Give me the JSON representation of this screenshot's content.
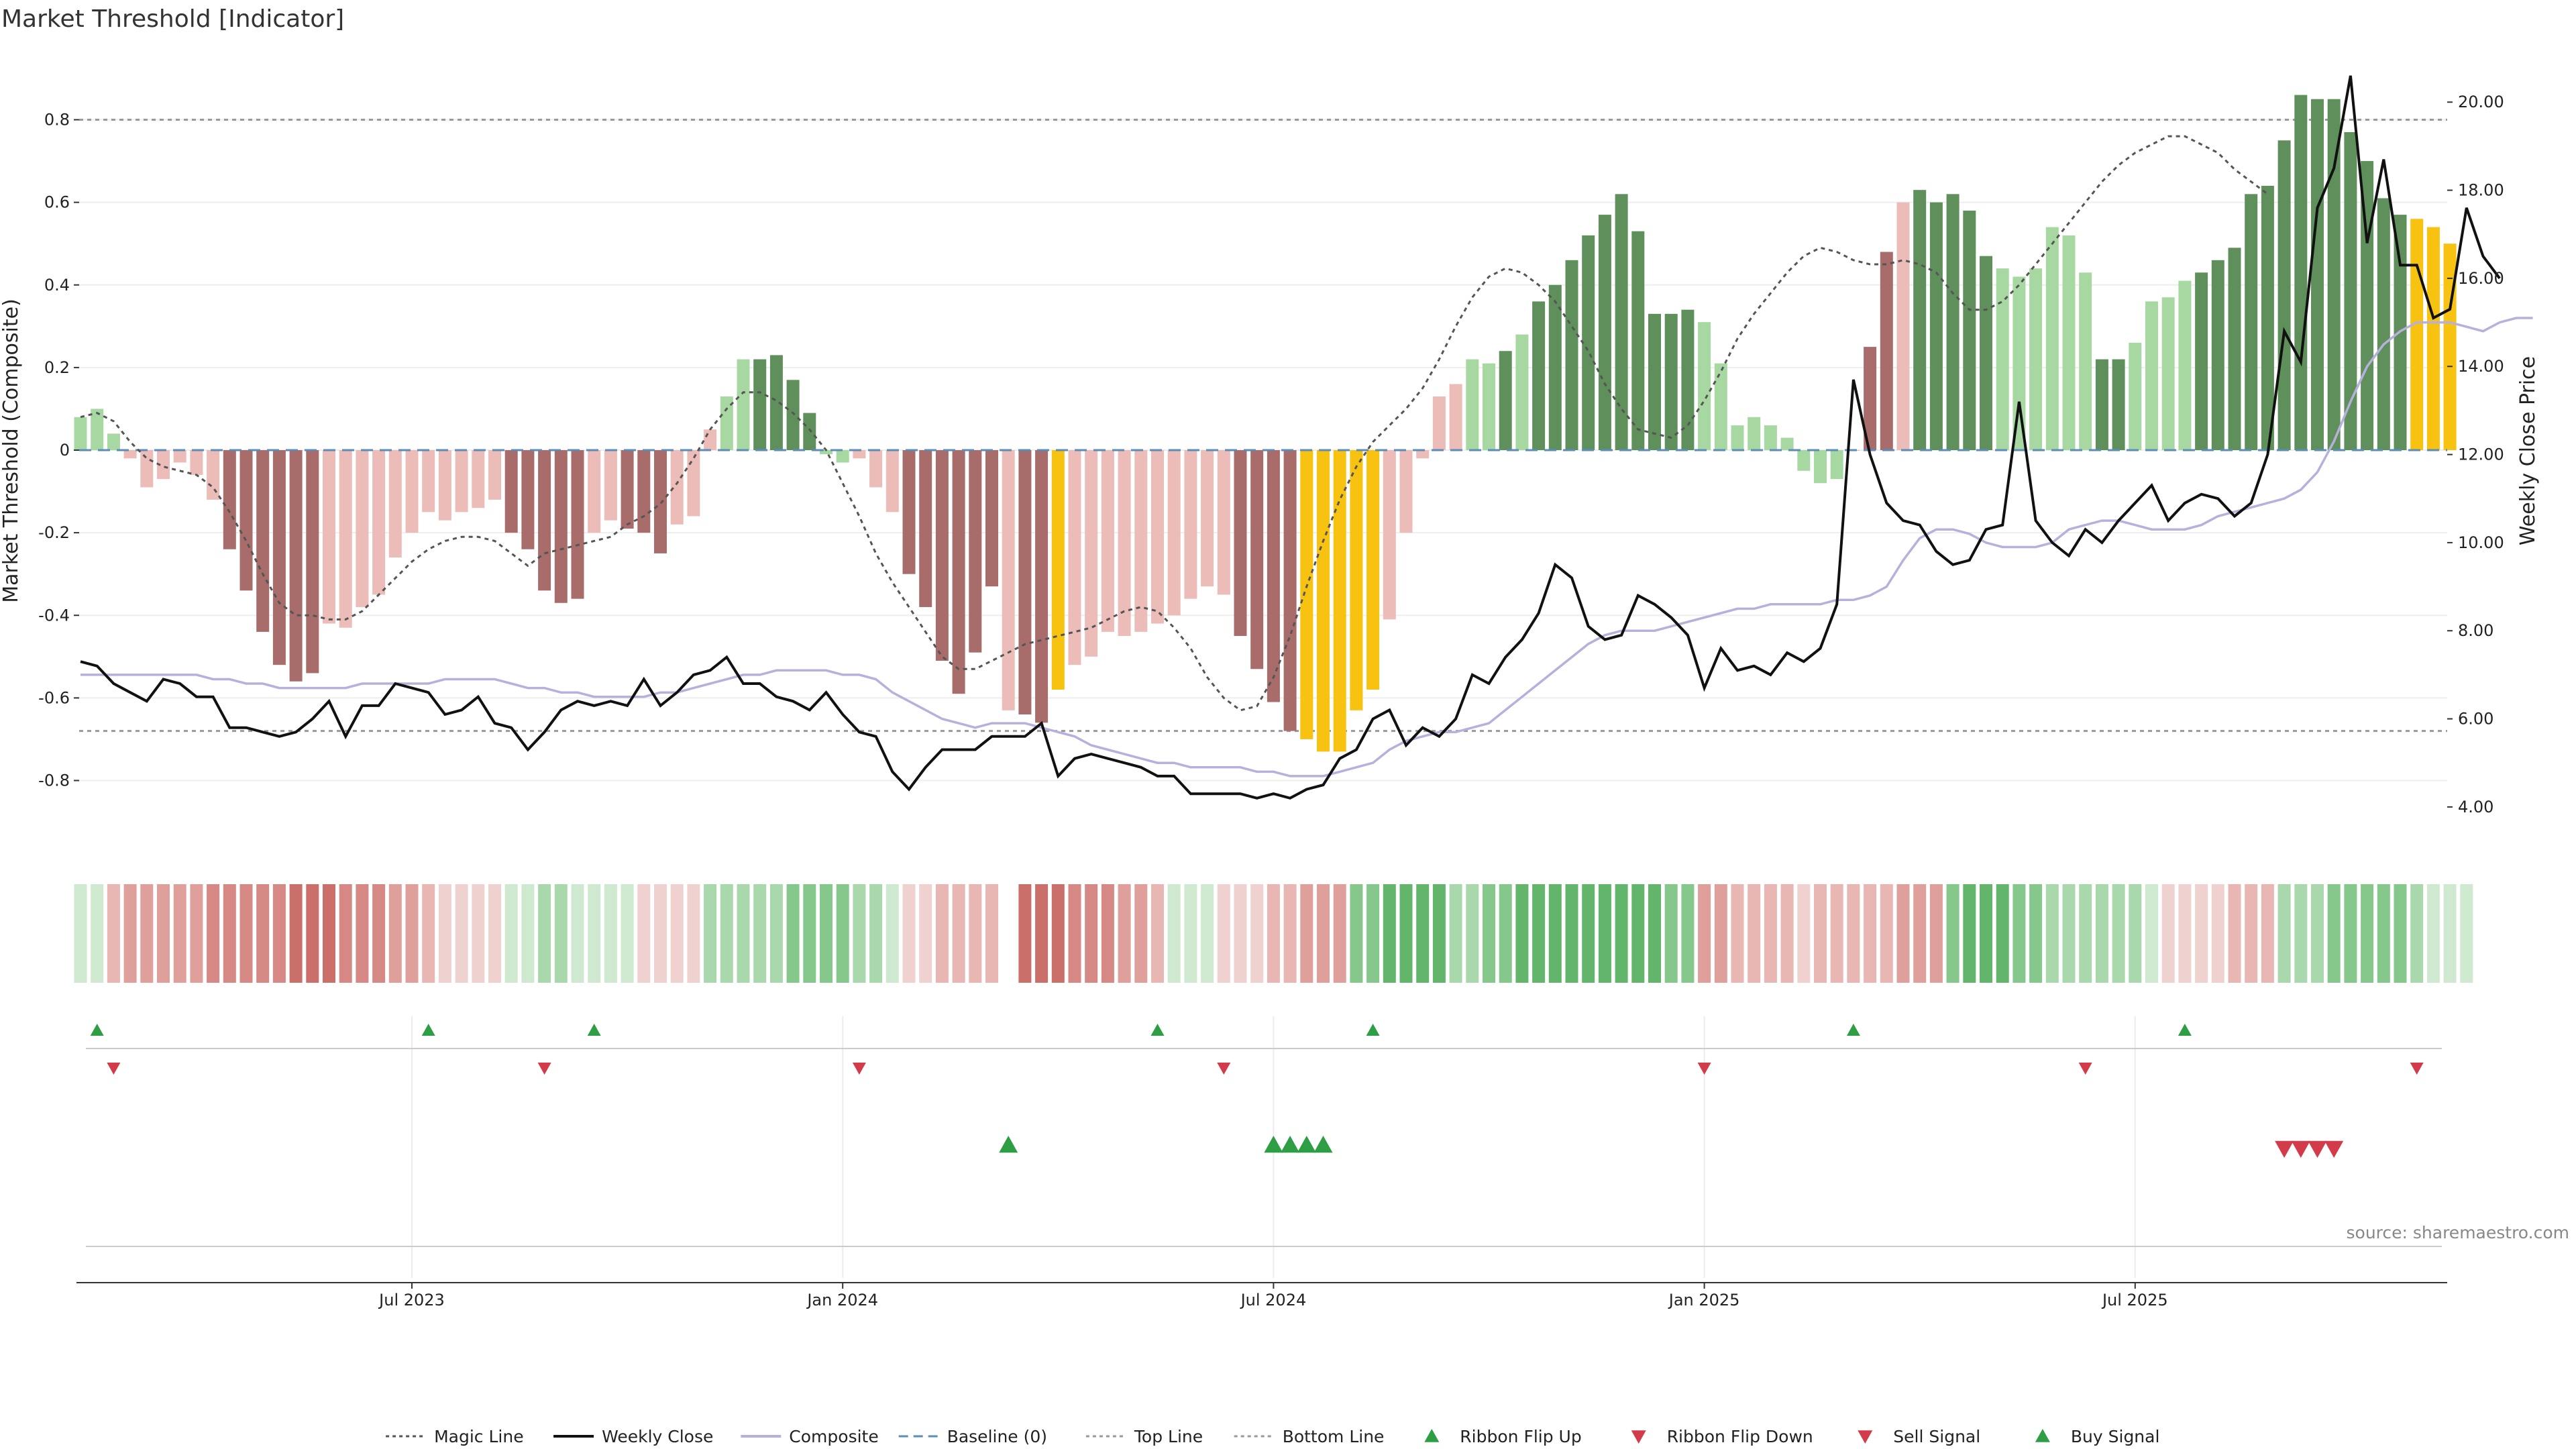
{
  "title": "Market Threshold [Indicator]",
  "source": "source: sharemaestro.com",
  "colors": {
    "dark_green": "#5f8f5a",
    "light_green": "#a8d8a2",
    "dark_red": "#a86c6a",
    "light_red": "#ecbcb8",
    "gold": "#f7c210",
    "close": "#111111",
    "composite": "#b8b0dc",
    "magic": "#555555",
    "baseline": "#5c8cb8",
    "ref_line": "#999999",
    "sell": "#d33a4a",
    "buy": "#2e9e44"
  },
  "chart_data": {
    "type": "bar",
    "title": "Market Threshold [Indicator]",
    "ylabel_left": "Market Threshold (Composite)",
    "ylabel_right": "Weekly Close Price",
    "ylim_left": [
      -0.96,
      0.96
    ],
    "ylim_right": [
      3.1,
      21.1
    ],
    "yticks_left": [
      "-0.8",
      "-0.6",
      "-0.4",
      "-0.2",
      "0",
      "0.2",
      "0.4",
      "0.6",
      "0.8"
    ],
    "yticks_right": [
      "4.00",
      "6.00",
      "8.00",
      "10.00",
      "12.00",
      "14.00",
      "16.00",
      "18.00",
      "20.00"
    ],
    "x_tick_labels": [
      "Jul 2023",
      "Jan 2024",
      "Jul 2024",
      "Jan 2025",
      "Jul 2025"
    ],
    "x_tick_weeks": [
      20,
      46,
      72,
      98,
      124
    ],
    "top_line": 0.8,
    "bottom_line": -0.68,
    "bars": [
      0.08,
      0.1,
      0.04,
      -0.02,
      -0.09,
      -0.07,
      -0.03,
      -0.06,
      -0.12,
      -0.24,
      -0.34,
      -0.44,
      -0.52,
      -0.56,
      -0.54,
      -0.42,
      -0.43,
      -0.38,
      -0.35,
      -0.26,
      -0.2,
      -0.15,
      -0.17,
      -0.15,
      -0.14,
      -0.12,
      -0.2,
      -0.24,
      -0.34,
      -0.37,
      -0.36,
      -0.2,
      -0.17,
      -0.19,
      -0.2,
      -0.25,
      -0.18,
      -0.16,
      0.05,
      0.13,
      0.22,
      0.22,
      0.23,
      0.17,
      0.09,
      -0.01,
      -0.03,
      -0.02,
      -0.09,
      -0.15,
      -0.3,
      -0.38,
      -0.51,
      -0.59,
      -0.49,
      -0.33,
      -0.63,
      -0.64,
      -0.66,
      -0.58,
      -0.52,
      -0.5,
      -0.44,
      -0.45,
      -0.44,
      -0.42,
      -0.4,
      -0.36,
      -0.33,
      -0.35,
      -0.45,
      -0.53,
      -0.61,
      -0.68,
      -0.7,
      -0.73,
      -0.73,
      -0.63,
      -0.58,
      -0.41,
      -0.2,
      -0.02,
      0.13,
      0.16,
      0.22,
      0.21,
      0.24,
      0.28,
      0.36,
      0.4,
      0.46,
      0.52,
      0.57,
      0.62,
      0.53,
      0.33,
      0.33,
      0.34,
      0.31,
      0.21,
      0.06,
      0.08,
      0.06,
      0.03,
      -0.05,
      -0.08,
      -0.07,
      0,
      0.25,
      0.48,
      0.6,
      0.63,
      0.6,
      0.62,
      0.58,
      0.47,
      0.44,
      0.42,
      0.44,
      0.54,
      0.52,
      0.43,
      0.22,
      0.22,
      0.26,
      0.36,
      0.37,
      0.41,
      0.43,
      0.46,
      0.49,
      0.62,
      0.64,
      0.75,
      0.86,
      0.85,
      0.85,
      0.77,
      0.7,
      0.61,
      0.57,
      0.56,
      0.54,
      0.5
    ],
    "bar_colors": "LLLRRRRRRDDDDDDRRRRRRRRRRRDDDDDRRDDDRRRLLGGGGLLRRRDDDDDDRDDYRRRRRRRRRRDDDDYYYYYRRRRRLLGLGGGGGGGGGGLLLLLLLLLRDDRGGGGGLLLLLLGGLLLLGGGGGGGGGGGGGYYYYLLLLLL",
    "series": [
      {
        "name": "Weekly Close",
        "values": [
          7.3,
          7.2,
          6.8,
          6.6,
          6.4,
          6.9,
          6.8,
          6.5,
          6.5,
          5.8,
          5.8,
          5.7,
          5.6,
          5.7,
          6.0,
          6.4,
          5.6,
          6.3,
          6.3,
          6.8,
          6.7,
          6.6,
          6.1,
          6.2,
          6.5,
          5.9,
          5.8,
          5.3,
          5.7,
          6.2,
          6.4,
          6.3,
          6.4,
          6.3,
          6.9,
          6.3,
          6.6,
          7.0,
          7.1,
          7.4,
          6.8,
          6.8,
          6.5,
          6.4,
          6.2,
          6.6,
          6.1,
          5.7,
          5.6,
          4.8,
          4.4,
          4.9,
          5.3,
          5.3,
          5.3,
          5.6,
          5.6,
          5.6,
          5.9,
          4.7,
          5.1,
          5.2,
          5.1,
          5.0,
          4.9,
          4.7,
          4.7,
          4.3,
          4.3,
          4.3,
          4.3,
          4.2,
          4.3,
          4.2,
          4.4,
          4.5,
          5.1,
          5.3,
          6.0,
          6.2,
          5.4,
          5.8,
          5.6,
          6.0,
          7.0,
          6.8,
          7.4,
          7.8,
          8.4,
          9.5,
          9.2,
          8.1,
          7.8,
          7.9,
          8.8,
          8.6,
          8.3,
          7.9,
          6.7,
          7.6,
          7.1,
          7.2,
          7.0,
          7.5,
          7.3,
          7.6,
          8.6,
          13.7,
          12.0,
          10.9,
          10.5,
          10.4,
          9.8,
          9.5,
          9.6,
          10.3,
          10.4,
          13.2,
          10.5,
          10.0,
          9.7,
          10.3,
          10.0,
          10.5,
          10.9,
          11.3,
          10.5,
          10.9,
          11.1,
          11.0,
          10.6,
          10.9,
          12.0,
          14.8,
          14.1,
          17.6,
          18.5,
          20.6,
          16.8,
          18.7,
          16.3,
          16.3,
          15.1,
          15.3,
          17.6,
          16.5,
          16.0
        ]
      },
      {
        "name": "Composite",
        "values": [
          7.0,
          7.0,
          7.0,
          7.0,
          7.0,
          7.0,
          7.0,
          7.0,
          6.9,
          6.9,
          6.8,
          6.8,
          6.7,
          6.7,
          6.7,
          6.7,
          6.7,
          6.8,
          6.8,
          6.8,
          6.8,
          6.8,
          6.9,
          6.9,
          6.9,
          6.9,
          6.8,
          6.7,
          6.7,
          6.6,
          6.6,
          6.5,
          6.5,
          6.5,
          6.5,
          6.6,
          6.6,
          6.7,
          6.8,
          6.9,
          7.0,
          7.0,
          7.1,
          7.1,
          7.1,
          7.1,
          7.0,
          7.0,
          6.9,
          6.6,
          6.4,
          6.2,
          6.0,
          5.9,
          5.8,
          5.9,
          5.9,
          5.9,
          5.8,
          5.7,
          5.6,
          5.4,
          5.3,
          5.2,
          5.1,
          5.0,
          5.0,
          4.9,
          4.9,
          4.9,
          4.9,
          4.8,
          4.8,
          4.7,
          4.7,
          4.7,
          4.8,
          4.9,
          5.0,
          5.3,
          5.5,
          5.6,
          5.7,
          5.7,
          5.8,
          5.9,
          6.2,
          6.5,
          6.8,
          7.1,
          7.4,
          7.7,
          7.9,
          8.0,
          8.0,
          8.0,
          8.1,
          8.2,
          8.3,
          8.4,
          8.5,
          8.5,
          8.6,
          8.6,
          8.6,
          8.6,
          8.7,
          8.7,
          8.8,
          9.0,
          9.6,
          10.1,
          10.3,
          10.3,
          10.2,
          10.0,
          9.9,
          9.9,
          9.9,
          10.0,
          10.3,
          10.4,
          10.5,
          10.5,
          10.4,
          10.3,
          10.3,
          10.3,
          10.4,
          10.6,
          10.7,
          10.8,
          10.9,
          11.0,
          11.2,
          11.6,
          12.3,
          13.2,
          14.0,
          14.5,
          14.8,
          15.0,
          15.0,
          15.0,
          14.9,
          14.8,
          15.0,
          15.1,
          15.1
        ]
      },
      {
        "name": "Magic Line",
        "values": [
          0.08,
          0.09,
          0.07,
          0.02,
          -0.02,
          -0.04,
          -0.05,
          -0.06,
          -0.09,
          -0.15,
          -0.22,
          -0.3,
          -0.37,
          -0.4,
          -0.4,
          -0.41,
          -0.41,
          -0.39,
          -0.35,
          -0.31,
          -0.27,
          -0.24,
          -0.22,
          -0.21,
          -0.21,
          -0.22,
          -0.25,
          -0.28,
          -0.25,
          -0.24,
          -0.23,
          -0.22,
          -0.21,
          -0.18,
          -0.16,
          -0.13,
          -0.08,
          -0.02,
          0.05,
          0.1,
          0.14,
          0.14,
          0.12,
          0.09,
          0.05,
          0.0,
          -0.08,
          -0.16,
          -0.25,
          -0.32,
          -0.38,
          -0.44,
          -0.5,
          -0.53,
          -0.53,
          -0.51,
          -0.49,
          -0.47,
          -0.46,
          -0.45,
          -0.44,
          -0.43,
          -0.41,
          -0.39,
          -0.38,
          -0.39,
          -0.43,
          -0.48,
          -0.55,
          -0.6,
          -0.63,
          -0.62,
          -0.55,
          -0.45,
          -0.33,
          -0.22,
          -0.12,
          -0.04,
          0.02,
          0.06,
          0.1,
          0.15,
          0.22,
          0.3,
          0.37,
          0.42,
          0.44,
          0.43,
          0.4,
          0.36,
          0.3,
          0.24,
          0.16,
          0.1,
          0.05,
          0.04,
          0.03,
          0.06,
          0.12,
          0.19,
          0.27,
          0.33,
          0.38,
          0.43,
          0.47,
          0.49,
          0.48,
          0.46,
          0.45,
          0.45,
          0.46,
          0.45,
          0.43,
          0.38,
          0.34,
          0.34,
          0.36,
          0.4,
          0.45,
          0.5,
          0.55,
          0.6,
          0.65,
          0.69,
          0.72,
          0.74,
          0.76,
          0.76,
          0.74,
          0.72,
          0.68,
          0.65,
          0.62
        ]
      },
      {
        "name": "Baseline (0)",
        "values": []
      },
      {
        "name": "Top Line",
        "values": []
      },
      {
        "name": "Bottom Line",
        "values": []
      }
    ],
    "ribbon": "1,1,2,3,3,3,3,3,4,4,4,4,4,5,5,5,4,4,4,3,3,2,1,1,1,1,1,1,2,2,1,1,1,1,1,1,1,1,2,2,2,2,2,3,3,3,3,2,2,1,1,1,2,2,2,2,0,5,5,5,4,4,4,3,3,2,1,1,1,1,1,1,2,2,3,3,3,3,3,4,4,4,4,2,2,3,3,4,4,4,4,4,4,4,4,4,3,3,3,3,2,2,2,2,1,2,2,2,2,2,3,3,3,3,4,4,4,3,3,2,2,2,2,2,2,1,1,1,1,1,2,2,2,2,2,2,3,3,3,3,3,2,1,1,1",
    "ribbon_signs": "++------------------------++++++++----++++++++++++----------------+++--------+++++++++++++++++++++---------------+++++++++++++-------+++++++++++++++++-----",
    "ribbon_flip_up": [
      1,
      21,
      31,
      65,
      78,
      107,
      127
    ],
    "ribbon_flip_down": [
      2,
      28,
      47,
      69,
      98,
      121,
      141
    ],
    "buy_signal": [
      56,
      72,
      73,
      74,
      75
    ],
    "sell_signal": [
      133,
      134,
      135,
      136
    ]
  },
  "legend": [
    {
      "label": "Magic Line",
      "icon": "dotted-line"
    },
    {
      "label": "Weekly Close",
      "icon": "solid-line"
    },
    {
      "label": "Composite",
      "icon": "solid-line"
    },
    {
      "label": "Baseline (0)",
      "icon": "dashed-line"
    },
    {
      "label": "Top Line",
      "icon": "dotted-line"
    },
    {
      "label": "Bottom Line",
      "icon": "dotted-line"
    },
    {
      "label": "Ribbon Flip Up",
      "icon": "triangle-up"
    },
    {
      "label": "Ribbon Flip Down",
      "icon": "triangle-down"
    },
    {
      "label": "Sell Signal",
      "icon": "triangle-down"
    },
    {
      "label": "Buy Signal",
      "icon": "triangle-up"
    }
  ]
}
